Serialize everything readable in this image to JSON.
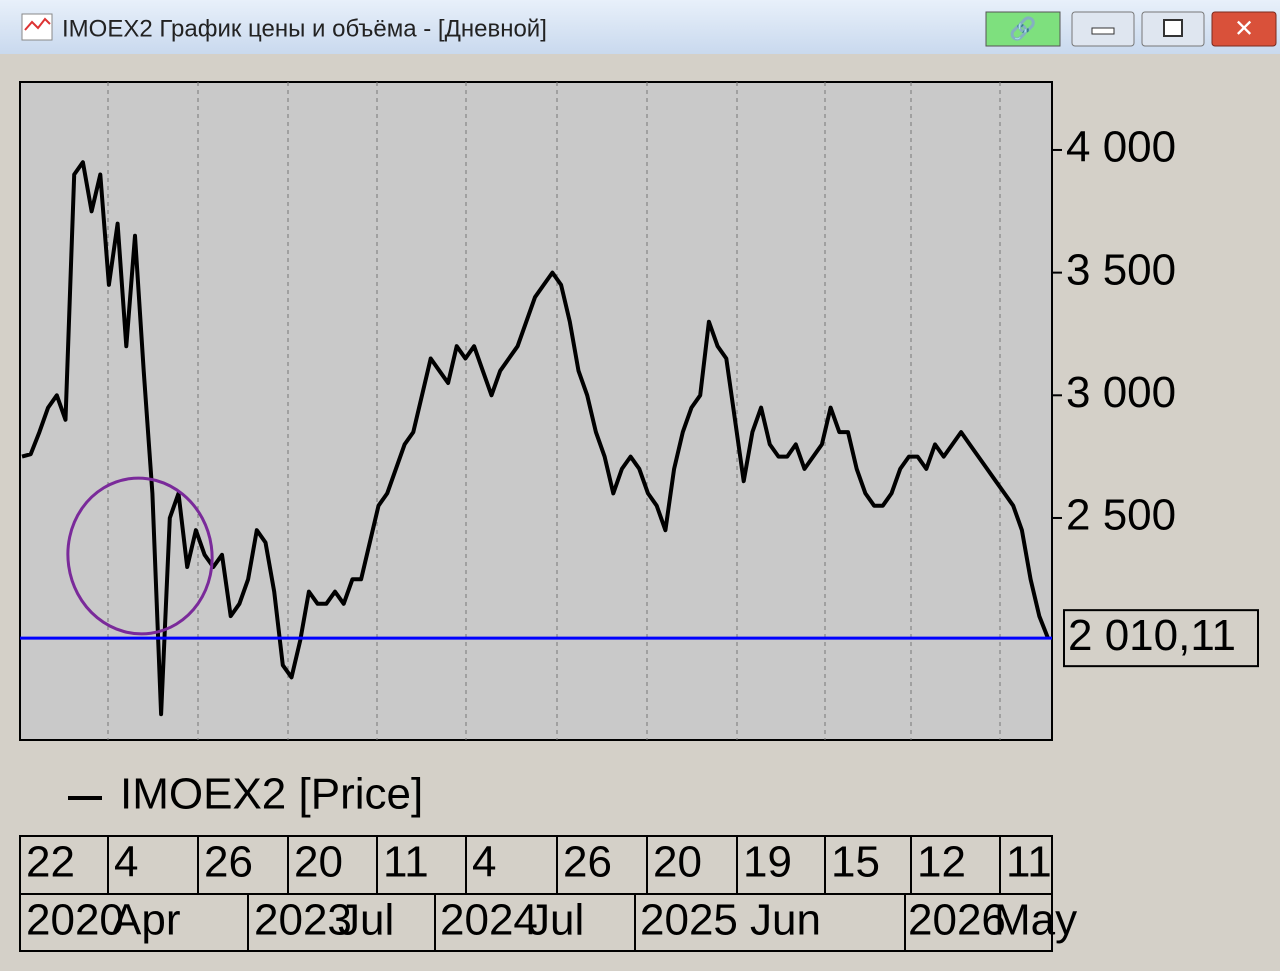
{
  "window": {
    "title": "IMOEX2 График цены и объёма - [Дневной]"
  },
  "chart_data": {
    "type": "line",
    "series": [
      {
        "name": "IMOEX2 [Price]",
        "color": "#000000",
        "values": [
          2750,
          2760,
          2850,
          2950,
          3000,
          2900,
          3900,
          3950,
          3750,
          3900,
          3450,
          3700,
          3200,
          3650,
          3100,
          2600,
          1700,
          2500,
          2600,
          2300,
          2450,
          2350,
          2300,
          2350,
          2100,
          2150,
          2250,
          2450,
          2400,
          2200,
          1900,
          1850,
          2000,
          2200,
          2150,
          2150,
          2200,
          2150,
          2250,
          2250,
          2400,
          2550,
          2600,
          2700,
          2800,
          2850,
          3000,
          3150,
          3100,
          3050,
          3200,
          3150,
          3200,
          3100,
          3000,
          3100,
          3150,
          3200,
          3300,
          3400,
          3450,
          3500,
          3450,
          3300,
          3100,
          3000,
          2850,
          2750,
          2600,
          2700,
          2750,
          2700,
          2600,
          2550,
          2450,
          2700,
          2850,
          2950,
          3000,
          3300,
          3200,
          3150,
          2900,
          2650,
          2850,
          2950,
          2800,
          2750,
          2750,
          2800,
          2700,
          2750,
          2800,
          2950,
          2850,
          2850,
          2700,
          2600,
          2550,
          2550,
          2600,
          2700,
          2750,
          2750,
          2700,
          2800,
          2750,
          2800,
          2850,
          2800,
          2750,
          2700,
          2650,
          2600,
          2550,
          2450,
          2250,
          2100,
          2010.11
        ]
      }
    ],
    "ylim": [
      1595,
      4277
    ],
    "yticks": [
      {
        "value": 2500,
        "label": "2 500"
      },
      {
        "value": 3000,
        "label": "3 000"
      },
      {
        "value": 3500,
        "label": "3 500"
      },
      {
        "value": 4000,
        "label": "4 000"
      }
    ],
    "reference_line": {
      "value": 2010.11,
      "label": "2 010,11",
      "color": "#0000ff"
    },
    "x_day_labels": [
      "22",
      "4",
      "26",
      "20",
      "11",
      "4",
      "26",
      "20",
      "19",
      "15",
      "12",
      "11"
    ],
    "x_period_labels": [
      "2020",
      "Apr",
      "2023",
      "Jul",
      "2024",
      "Jul",
      "2025",
      "Jun",
      "2026",
      "May"
    ]
  }
}
